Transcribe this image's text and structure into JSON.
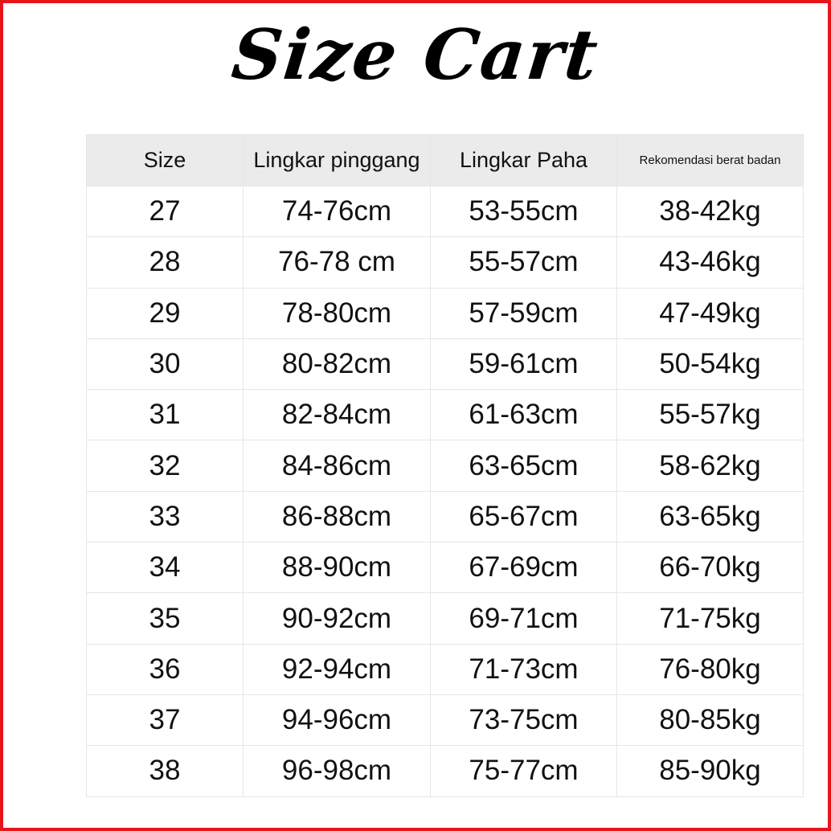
{
  "title": "Size Cart",
  "colors": {
    "border": "#e8141b",
    "header_bg": "#ebebeb"
  },
  "table": {
    "headers": [
      "Size",
      "Lingkar pinggang",
      "Lingkar Paha",
      "Rekomendasi berat badan"
    ],
    "rows": [
      [
        "27",
        "74-76cm",
        "53-55cm",
        "38-42kg"
      ],
      [
        "28",
        "76-78 cm",
        "55-57cm",
        "43-46kg"
      ],
      [
        "29",
        "78-80cm",
        "57-59cm",
        "47-49kg"
      ],
      [
        "30",
        "80-82cm",
        "59-61cm",
        "50-54kg"
      ],
      [
        "31",
        "82-84cm",
        "61-63cm",
        "55-57kg"
      ],
      [
        "32",
        "84-86cm",
        "63-65cm",
        "58-62kg"
      ],
      [
        "33",
        "86-88cm",
        "65-67cm",
        "63-65kg"
      ],
      [
        "34",
        "88-90cm",
        "67-69cm",
        "66-70kg"
      ],
      [
        "35",
        "90-92cm",
        "69-71cm",
        "71-75kg"
      ],
      [
        "36",
        "92-94cm",
        "71-73cm",
        "76-80kg"
      ],
      [
        "37",
        "94-96cm",
        "73-75cm",
        "80-85kg"
      ],
      [
        "38",
        "96-98cm",
        "75-77cm",
        "85-90kg"
      ]
    ]
  }
}
